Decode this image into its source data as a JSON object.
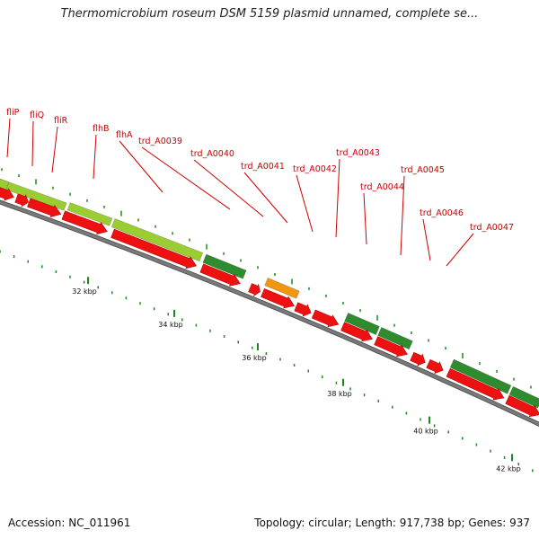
{
  "title": "Thermomicrobium roseum DSM 5159 plasmid unnamed, complete se...",
  "footer": {
    "accession": "Accession: NC_011961",
    "topology": "Topology: circular; Length: 917,738 bp; Genes: 937"
  },
  "colors": {
    "gene_label": "#cc0000",
    "cds_red": "#ee1111",
    "feature_green": "#2e8b2e",
    "feature_lightgreen": "#9acd32",
    "feature_orange": "#f0960f",
    "backbone": "#7a7a7a",
    "tick_green": "#1a8a1a"
  },
  "gene_labels": [
    "fliP",
    "fliQ",
    "fliR",
    "flhB",
    "flhA",
    "trd_A0039",
    "trd_A0040",
    "trd_A0041",
    "trd_A0042",
    "trd_A0043",
    "trd_A0044",
    "trd_A0045",
    "trd_A0046",
    "trd_A0047"
  ],
  "kbp_labels": [
    "32 kbp",
    "34 kbp",
    "36 kbp",
    "38 kbp",
    "40 kbp",
    "42 kbp"
  ]
}
